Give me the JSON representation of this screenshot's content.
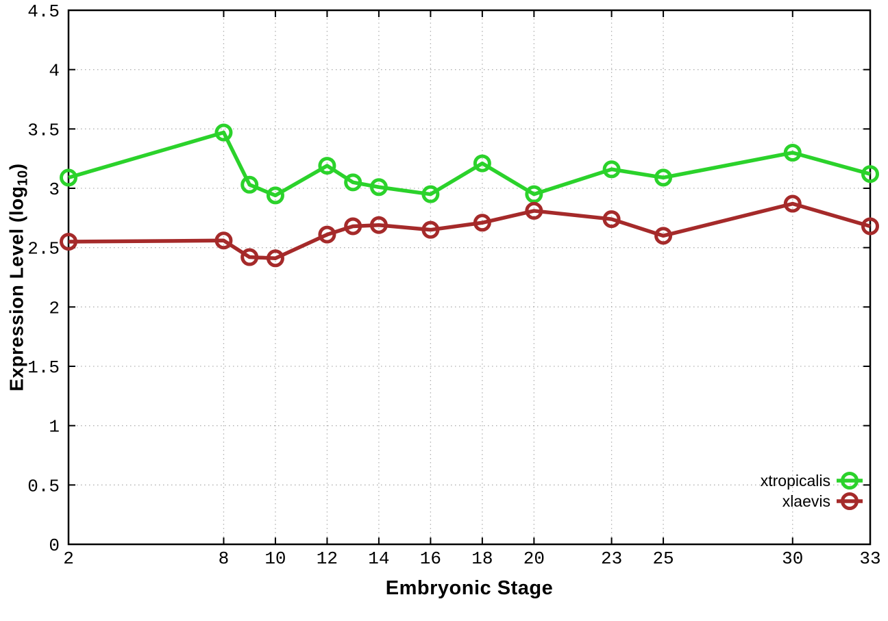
{
  "chart_data": {
    "type": "line",
    "title": "",
    "xlabel": "Embryonic Stage",
    "ylabel": "Expression Level (log10)",
    "ylabel_parts": {
      "prefix": "Expression Level (log",
      "subscript": "10",
      "suffix": ")"
    },
    "x": [
      2,
      8,
      9,
      10,
      12,
      13,
      14,
      16,
      18,
      20,
      23,
      25,
      30,
      33
    ],
    "series": [
      {
        "name": "xtropicalis",
        "color": "#2bd22b",
        "values": [
          3.09,
          3.47,
          3.03,
          2.94,
          3.19,
          3.05,
          3.01,
          2.95,
          3.21,
          2.95,
          3.16,
          3.09,
          3.3,
          3.12
        ]
      },
      {
        "name": "xlaevis",
        "color": "#a52a2a",
        "values": [
          2.55,
          2.56,
          2.42,
          2.41,
          2.61,
          2.68,
          2.69,
          2.65,
          2.71,
          2.81,
          2.74,
          2.6,
          2.87,
          2.68
        ]
      }
    ],
    "xlim": [
      2,
      33
    ],
    "ylim": [
      0,
      4.5
    ],
    "x_ticks": [
      2,
      8,
      10,
      12,
      14,
      16,
      18,
      20,
      23,
      25,
      30,
      33
    ],
    "x_tick_labels": [
      "2",
      "8",
      "10",
      "12",
      "14",
      "16",
      "18",
      "20",
      "23",
      "25",
      "30",
      "33"
    ],
    "y_ticks": [
      0,
      0.5,
      1,
      1.5,
      2,
      2.5,
      3,
      3.5,
      4,
      4.5
    ],
    "y_tick_labels": [
      "0",
      "0.5",
      "1",
      "1.5",
      "2",
      "2.5",
      "3",
      "3.5",
      "4",
      "4.5"
    ],
    "grid": true,
    "legend_position": "bottom-right",
    "marker": "open-circle",
    "colors": {
      "axis": "#000000",
      "grid": "#b0b0b0",
      "background": "#ffffff",
      "text": "#000000"
    }
  }
}
